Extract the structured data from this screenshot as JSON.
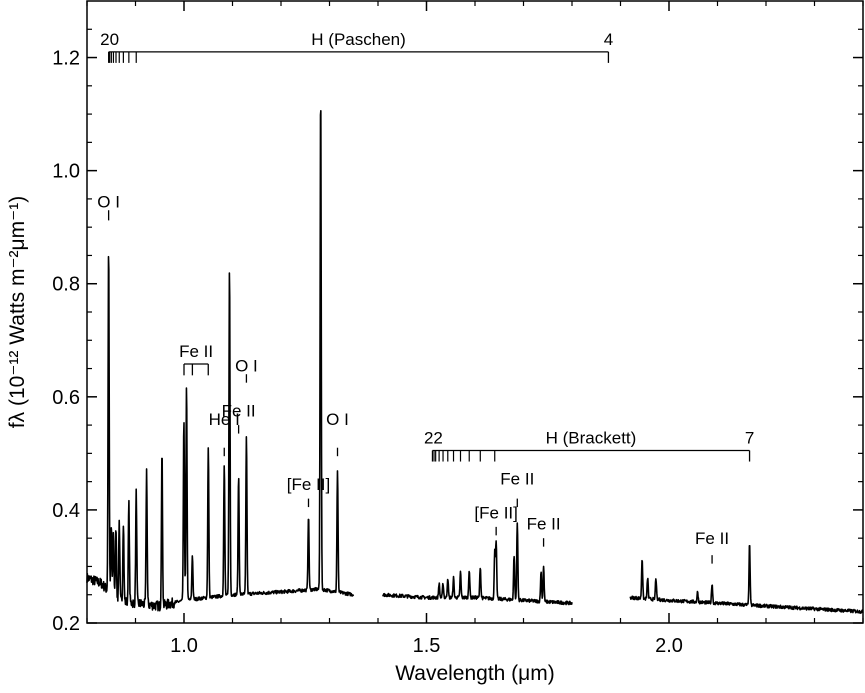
{
  "chart_data": {
    "type": "line",
    "xlabel": "Wavelength (μm)",
    "ylabel": "fλ (10⁻¹² Watts m⁻²μm⁻¹)",
    "xlim": [
      0.8,
      2.4
    ],
    "ylim": [
      0.2,
      1.3
    ],
    "x_ticks": [
      1.0,
      1.5,
      2.0
    ],
    "x_tick_labels": [
      "1.0",
      "1.5",
      "2.0"
    ],
    "y_ticks": [
      0.2,
      0.4,
      0.6,
      0.8,
      1.0,
      1.2
    ],
    "y_tick_labels": [
      "0.2",
      "0.4",
      "0.6",
      "0.8",
      "1.0",
      "1.2"
    ],
    "grid": false,
    "segments": [
      {
        "x_range": [
          0.8,
          1.35
        ],
        "continuum": [
          [
            0.8,
            0.28
          ],
          [
            0.83,
            0.27
          ],
          [
            0.86,
            0.24
          ],
          [
            0.9,
            0.235
          ],
          [
            0.95,
            0.23
          ],
          [
            1.0,
            0.24
          ],
          [
            1.05,
            0.245
          ],
          [
            1.1,
            0.25
          ],
          [
            1.2,
            0.255
          ],
          [
            1.28,
            0.26
          ],
          [
            1.35,
            0.25
          ]
        ]
      },
      {
        "x_range": [
          1.41,
          1.8
        ],
        "continuum": [
          [
            1.41,
            0.25
          ],
          [
            1.5,
            0.245
          ],
          [
            1.6,
            0.245
          ],
          [
            1.7,
            0.24
          ],
          [
            1.8,
            0.235
          ]
        ]
      },
      {
        "x_range": [
          1.92,
          2.4
        ],
        "continuum": [
          [
            1.92,
            0.245
          ],
          [
            2.0,
            0.24
          ],
          [
            2.1,
            0.235
          ],
          [
            2.2,
            0.23
          ],
          [
            2.3,
            0.225
          ],
          [
            2.4,
            0.22
          ]
        ]
      }
    ],
    "emission_lines": [
      {
        "x": 0.8446,
        "peak": 0.87
      },
      {
        "x": 0.8502,
        "peak": 0.37
      },
      {
        "x": 0.8545,
        "peak": 0.36
      },
      {
        "x": 0.8598,
        "peak": 0.37
      },
      {
        "x": 0.8665,
        "peak": 0.38
      },
      {
        "x": 0.875,
        "peak": 0.38
      },
      {
        "x": 0.8863,
        "peak": 0.41
      },
      {
        "x": 0.9015,
        "peak": 0.43
      },
      {
        "x": 0.9229,
        "peak": 0.47
      },
      {
        "x": 0.9546,
        "peak": 0.5
      },
      {
        "x": 0.9998,
        "peak": 0.56
      },
      {
        "x": 1.0052,
        "peak": 0.62
      },
      {
        "x": 1.0173,
        "peak": 0.32
      },
      {
        "x": 1.0501,
        "peak": 0.51
      },
      {
        "x": 1.083,
        "peak": 0.48
      },
      {
        "x": 1.0938,
        "peak": 0.83
      },
      {
        "x": 1.1126,
        "peak": 0.46
      },
      {
        "x": 1.1287,
        "peak": 0.53
      },
      {
        "x": 1.2567,
        "peak": 0.39
      },
      {
        "x": 1.2818,
        "peak": 1.15
      },
      {
        "x": 1.3165,
        "peak": 0.47
      },
      {
        "x": 1.526,
        "peak": 0.27
      },
      {
        "x": 1.5341,
        "peak": 0.27
      },
      {
        "x": 1.5439,
        "peak": 0.28
      },
      {
        "x": 1.5557,
        "peak": 0.28
      },
      {
        "x": 1.5701,
        "peak": 0.29
      },
      {
        "x": 1.5881,
        "peak": 0.295
      },
      {
        "x": 1.6109,
        "peak": 0.3
      },
      {
        "x": 1.6407,
        "peak": 0.325
      },
      {
        "x": 1.6436,
        "peak": 0.345
      },
      {
        "x": 1.6806,
        "peak": 0.32
      },
      {
        "x": 1.6872,
        "peak": 0.38
      },
      {
        "x": 1.7362,
        "peak": 0.29
      },
      {
        "x": 1.7414,
        "peak": 0.3
      },
      {
        "x": 1.9446,
        "peak": 0.315
      },
      {
        "x": 1.956,
        "peak": 0.28
      },
      {
        "x": 1.973,
        "peak": 0.28
      },
      {
        "x": 2.059,
        "peak": 0.255
      },
      {
        "x": 2.0888,
        "peak": 0.27
      },
      {
        "x": 2.1661,
        "peak": 0.34
      }
    ],
    "series_ladders": [
      {
        "name": "H (Paschen)",
        "start_label": "20",
        "end_label": "4",
        "x_start": 0.8446,
        "x_end": 1.8751,
        "y": 1.21,
        "ticks": [
          0.8446,
          0.8467,
          0.8502,
          0.8545,
          0.8598,
          0.8665,
          0.875,
          0.8863,
          0.9015
        ]
      },
      {
        "name": "H (Brackett)",
        "start_label": "22",
        "end_label": "7",
        "x_start": 1.5122,
        "x_end": 2.1661,
        "y": 0.505,
        "ticks": [
          1.5122,
          1.5155,
          1.5189,
          1.526,
          1.5341,
          1.5439,
          1.5557,
          1.5701,
          1.5881,
          1.6109,
          1.6407
        ]
      }
    ],
    "annotations": [
      {
        "text": "O I",
        "x": 0.8446,
        "y_text": 0.935,
        "tick": [
          0.912,
          0.93
        ]
      },
      {
        "text": "He I",
        "x": 1.083,
        "y_text": 0.55,
        "tick": [
          0.495,
          0.51
        ]
      },
      {
        "text": "O I",
        "x": 1.1287,
        "y_text": 0.645,
        "tick": [
          0.625,
          0.64
        ]
      },
      {
        "text": "Fe II",
        "x": 1.1126,
        "y_text": 0.565,
        "tick": [
          0.535,
          0.55
        ]
      },
      {
        "text": "[Fe II]",
        "x": 1.2567,
        "y_text": 0.435,
        "tick": [
          0.405,
          0.42
        ]
      },
      {
        "text": "O I",
        "x": 1.3165,
        "y_text": 0.55,
        "tick": [
          0.495,
          0.51
        ]
      },
      {
        "text": "[Fe II]",
        "x": 1.6436,
        "y_text": 0.385,
        "tick": [
          0.355,
          0.37
        ]
      },
      {
        "text": "Fe II",
        "x": 1.6872,
        "y_text": 0.445,
        "tick": [
          0.405,
          0.42
        ]
      },
      {
        "text": "Fe II",
        "x": 1.7414,
        "y_text": 0.365,
        "tick": [
          0.335,
          0.35
        ]
      },
      {
        "text": "Fe II",
        "x": 2.0888,
        "y_text": 0.34,
        "tick": [
          0.305,
          0.32
        ]
      }
    ],
    "bracket": {
      "label": "Fe II",
      "x_left": 1.0,
      "x_mid": 1.0173,
      "x_right": 1.05,
      "y_bar": 0.658,
      "y_bottom": 0.638,
      "y_text": 0.67
    }
  }
}
